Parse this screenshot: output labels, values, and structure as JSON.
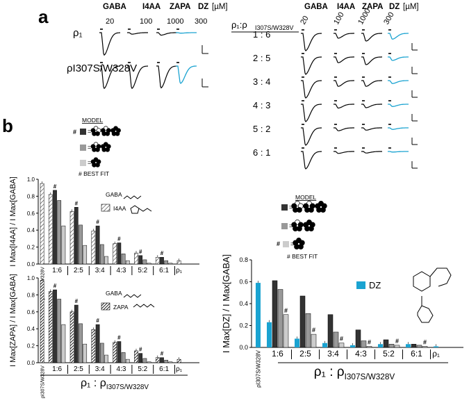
{
  "panel_labels": {
    "a": "a",
    "b": "b"
  },
  "panel_a": {
    "drug_headers": [
      "GABA",
      "I4AA",
      "ZAPA",
      "DZ"
    ],
    "unit": "[µM]",
    "concentrations": [
      "20",
      "100",
      "1000",
      "300"
    ],
    "left_rows": [
      {
        "label": "ρ₁",
        "amps": [
          0.9,
          0.06,
          0.1,
          0.02
        ]
      },
      {
        "label": "ρI307S/W328V",
        "amps": [
          0.9,
          0.9,
          0.88,
          0.7
        ]
      }
    ],
    "right_header": {
      "main": "ρ₁:ρ",
      "sub": "I307S/W328V"
    },
    "ratio_rows": [
      {
        "label": "1 : 6",
        "amps": [
          0.9,
          0.25,
          0.4,
          0.3
        ]
      },
      {
        "label": "2 : 5",
        "amps": [
          0.9,
          0.3,
          0.4,
          0.18
        ]
      },
      {
        "label": "3 : 4",
        "amps": [
          0.9,
          0.3,
          0.3,
          0.15
        ]
      },
      {
        "label": "4 : 3",
        "amps": [
          0.9,
          0.2,
          0.18,
          0.12
        ]
      },
      {
        "label": "5 : 2",
        "amps": [
          0.9,
          0.15,
          0.12,
          0.08
        ]
      },
      {
        "label": "6 : 1",
        "amps": [
          0.9,
          0.1,
          0.08,
          0.03
        ]
      }
    ]
  },
  "model_legend": {
    "title": "MODEL",
    "best_fit": "# BEST FIT",
    "hash": "#",
    "colors": [
      "#333333",
      "#999999",
      "#cccccc"
    ]
  },
  "chart_data": [
    {
      "type": "bar",
      "ylabel": "I Max[I4AA] / I Max[GABA]",
      "ylim": [
        0,
        1.0
      ],
      "yticks": [
        "0.0",
        "0.2",
        "0.4",
        "0.6",
        "0.8",
        "1.0"
      ],
      "legend": [
        "GABA",
        "I4AA"
      ],
      "groups": [
        {
          "label": "ρI307S/W328V",
          "values": [
            0.95
          ]
        },
        {
          "label": "1:6",
          "values": [
            0.82,
            0.87,
            0.75,
            0.45
          ],
          "best": 1
        },
        {
          "label": "2:5",
          "values": [
            0.62,
            0.67,
            0.46,
            0.22
          ],
          "best": 1
        },
        {
          "label": "3:4",
          "values": [
            0.39,
            0.45,
            0.23,
            0.09
          ],
          "best": 1
        },
        {
          "label": "4:3",
          "values": [
            0.24,
            0.25,
            0.12,
            0.04
          ],
          "best": 1
        },
        {
          "label": "5:2",
          "values": [
            0.13,
            0.1,
            0.05,
            0.01
          ],
          "best": 1
        },
        {
          "label": "6:1",
          "values": [
            0.08,
            0.08,
            0.04,
            0.01
          ],
          "best": 1
        },
        {
          "label": "ρ₁",
          "values": [
            0.04
          ]
        }
      ]
    },
    {
      "type": "bar",
      "ylabel": "I Max[ZAPA] / I Max[GABA]",
      "ylim": [
        0,
        1.0
      ],
      "yticks": [
        "0.0",
        "0.2",
        "0.4",
        "0.6",
        "0.8",
        "1.0"
      ],
      "legend": [
        "GABA",
        "ZAPA"
      ],
      "groups": [
        {
          "label": "ρI307S/W328V",
          "values": [
            0.97
          ]
        },
        {
          "label": "1:6",
          "values": [
            0.84,
            0.86,
            0.75,
            0.45
          ],
          "best": 1
        },
        {
          "label": "2:5",
          "values": [
            0.6,
            0.68,
            0.46,
            0.22
          ],
          "best": 1
        },
        {
          "label": "3:4",
          "values": [
            0.39,
            0.45,
            0.23,
            0.09
          ],
          "best": 1
        },
        {
          "label": "4:3",
          "values": [
            0.24,
            0.25,
            0.12,
            0.04
          ],
          "best": 1
        },
        {
          "label": "5:2",
          "values": [
            0.14,
            0.11,
            0.05,
            0.01
          ],
          "best": 1
        },
        {
          "label": "6:1",
          "values": [
            0.06,
            0.06,
            0.03,
            0.01
          ],
          "best": 1
        },
        {
          "label": "ρ₁",
          "values": [
            0.04
          ]
        }
      ]
    },
    {
      "type": "bar",
      "ylabel": "I Max[DZ] / I Max[GABA]",
      "ylim": [
        0,
        0.8
      ],
      "yticks": [
        "0.0",
        "0.2",
        "0.4",
        "0.6",
        "0.8"
      ],
      "legend": [
        "DZ"
      ],
      "groups": [
        {
          "label": "ρI307S/W328V",
          "values": [
            0.59
          ]
        },
        {
          "label": "1:6",
          "values": [
            0.23,
            0.61,
            0.53,
            0.3
          ],
          "best": 3
        },
        {
          "label": "2:5",
          "values": [
            0.08,
            0.47,
            0.31,
            0.12
          ],
          "best": 3
        },
        {
          "label": "3:4",
          "values": [
            0.04,
            0.3,
            0.14,
            0.04
          ],
          "best": 3
        },
        {
          "label": "4:3",
          "values": [
            0.02,
            0.16,
            0.06,
            0.01
          ],
          "best": 3
        },
        {
          "label": "5:2",
          "values": [
            0.03,
            0.07,
            0.03,
            0.02
          ],
          "best": 3
        },
        {
          "label": "6:1",
          "values": [
            0.03,
            0.03,
            0.02,
            0.01
          ],
          "best": 3
        },
        {
          "label": "ρ₁",
          "values": [
            0.01
          ]
        }
      ]
    }
  ],
  "x_axis_label": {
    "main": "ρ₁ : ρ",
    "sub": "I307S/W328V"
  },
  "dz_legend": "DZ",
  "colors": {
    "dz": "#1aa3d1",
    "dark": "#333333",
    "mid": "#999999",
    "light": "#cccccc"
  }
}
